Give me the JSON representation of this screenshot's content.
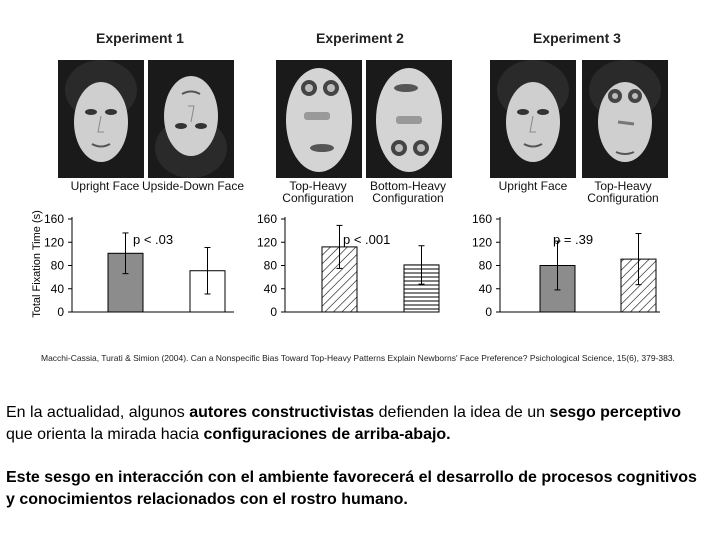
{
  "experiments": [
    {
      "title": "Experiment 1",
      "conditions": [
        "Upright Face",
        "Upside-Down Face"
      ]
    },
    {
      "title": "Experiment 2",
      "conditions": [
        "Top-Heavy Configuration",
        "Bottom-Heavy Configuration"
      ]
    },
    {
      "title": "Experiment 3",
      "conditions": [
        "Upright Face",
        "Top-Heavy Configuration"
      ]
    }
  ],
  "chart_data": [
    {
      "type": "bar",
      "categories": [
        "Upright Face",
        "Upside-Down Face"
      ],
      "values": [
        101,
        71
      ],
      "errors": [
        35,
        40
      ],
      "ylim": [
        0,
        160
      ],
      "yticks": [
        0,
        40,
        80,
        120,
        160
      ],
      "annotation": "p < .03",
      "ylabel": "Total Fixation Time (s)",
      "fills": [
        "gray",
        "white"
      ]
    },
    {
      "type": "bar",
      "categories": [
        "Top-Heavy Configuration",
        "Bottom-Heavy Configuration"
      ],
      "values": [
        112,
        81
      ],
      "errors": [
        37,
        33
      ],
      "ylim": [
        0,
        160
      ],
      "yticks": [
        0,
        40,
        80,
        120,
        160
      ],
      "annotation": "p < .001",
      "ylabel": "",
      "fills": [
        "diagonal",
        "horizontal"
      ]
    },
    {
      "type": "bar",
      "categories": [
        "Upright Face",
        "Top-Heavy Configuration"
      ],
      "values": [
        80,
        91
      ],
      "errors": [
        42,
        44
      ],
      "ylim": [
        0,
        160
      ],
      "yticks": [
        0,
        40,
        80,
        120,
        160
      ],
      "annotation": "p = .39",
      "ylabel": "",
      "fills": [
        "gray",
        "diagonal"
      ]
    }
  ],
  "citation": "Macchi-Cassia, Turati & Simion (2004). Can a Nonspecific Bias Toward Top-Heavy Patterns Explain Newborns' Face Preference? Psichological Science, 15(6), 379-383.",
  "paragraph1": [
    {
      "text": "En la actualidad, algunos ",
      "bold": false
    },
    {
      "text": "autores constructivistas",
      "bold": true
    },
    {
      "text": " defienden la idea de un ",
      "bold": false
    },
    {
      "text": "sesgo perceptivo",
      "bold": true
    },
    {
      "text": " que orienta la mirada hacia ",
      "bold": false
    },
    {
      "text": "configuraciones de arriba-abajo.",
      "bold": true
    }
  ],
  "paragraph2": "Este sesgo en interacción con el ambiente favorecerá el desarrollo de procesos cognitivos y conocimientos relacionados con el rostro humano."
}
